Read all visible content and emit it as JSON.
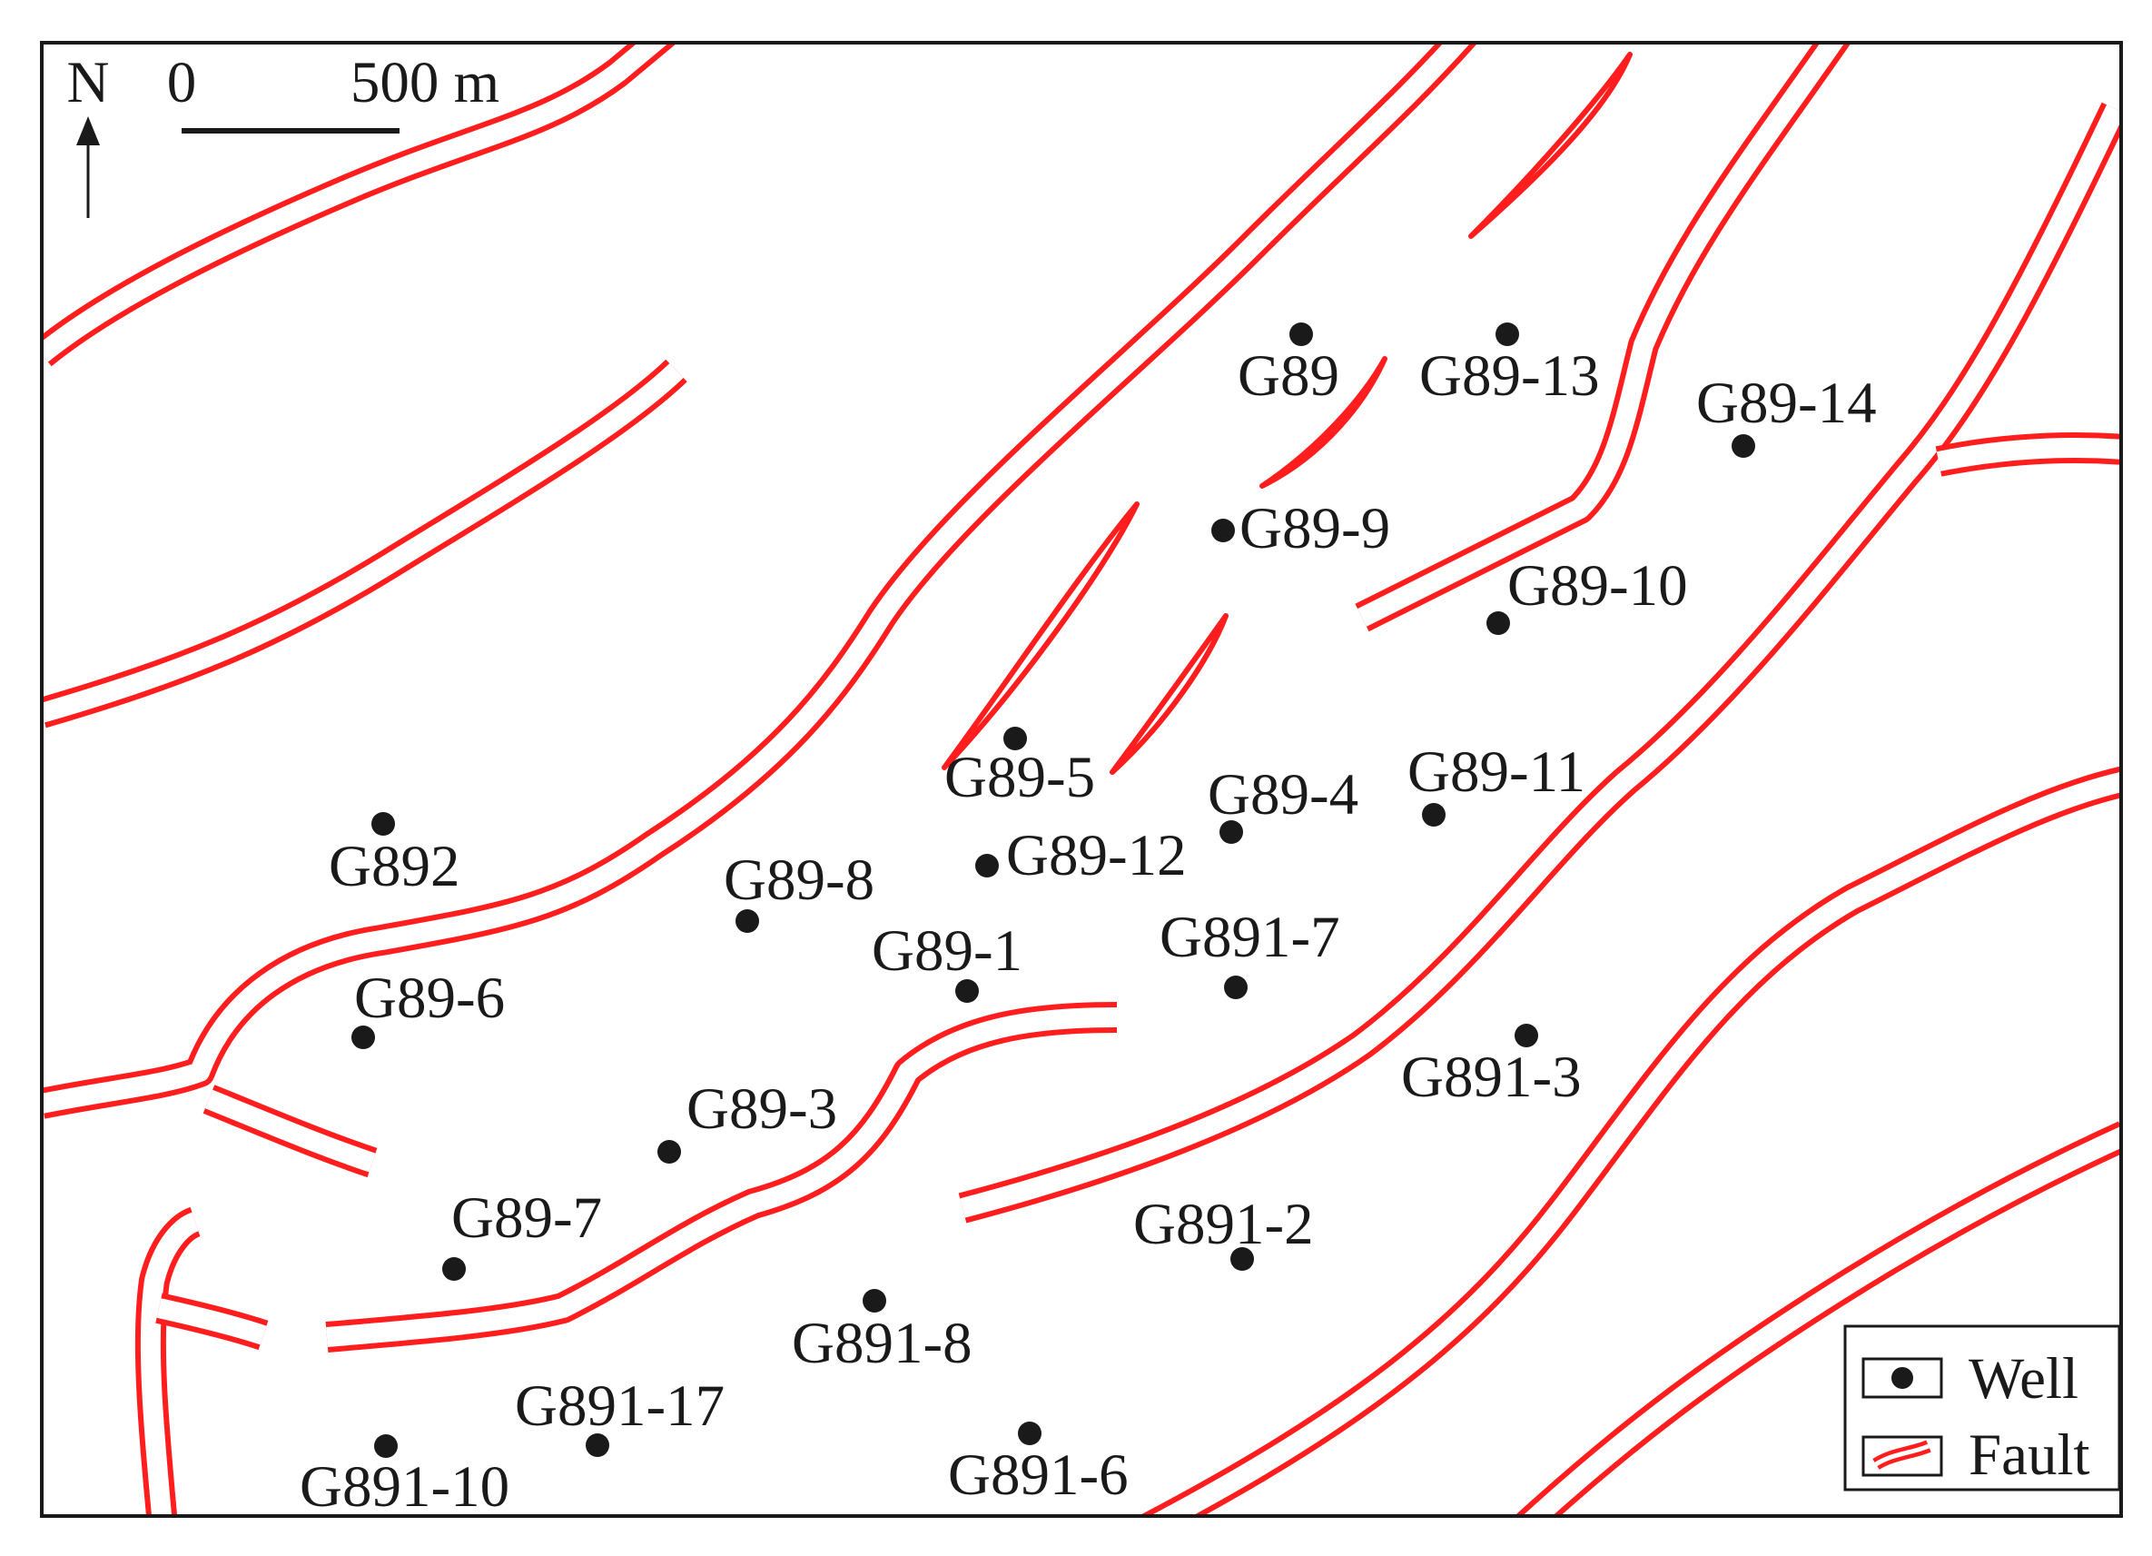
{
  "north_arrow": {
    "label": "N"
  },
  "scale_bar": {
    "start_label": "0",
    "end_label": "500 m"
  },
  "legend": {
    "well_label": "Well",
    "fault_label": "Fault"
  },
  "colors": {
    "fault": "#ff1d1d",
    "well": "#1a1a1a",
    "frame": "#1a1a1a"
  },
  "wells": [
    {
      "name": "G89"
    },
    {
      "name": "G89-13"
    },
    {
      "name": "G89-14"
    },
    {
      "name": "G89-9"
    },
    {
      "name": "G89-10"
    },
    {
      "name": "G89-5"
    },
    {
      "name": "G89-4"
    },
    {
      "name": "G89-11"
    },
    {
      "name": "G892"
    },
    {
      "name": "G89-12"
    },
    {
      "name": "G89-8"
    },
    {
      "name": "G89-1"
    },
    {
      "name": "G891-7"
    },
    {
      "name": "G89-6"
    },
    {
      "name": "G891-3"
    },
    {
      "name": "G89-3"
    },
    {
      "name": "G89-7"
    },
    {
      "name": "G891-2"
    },
    {
      "name": "G891-8"
    },
    {
      "name": "G891-17"
    },
    {
      "name": "G891-10"
    },
    {
      "name": "G891-6"
    }
  ]
}
